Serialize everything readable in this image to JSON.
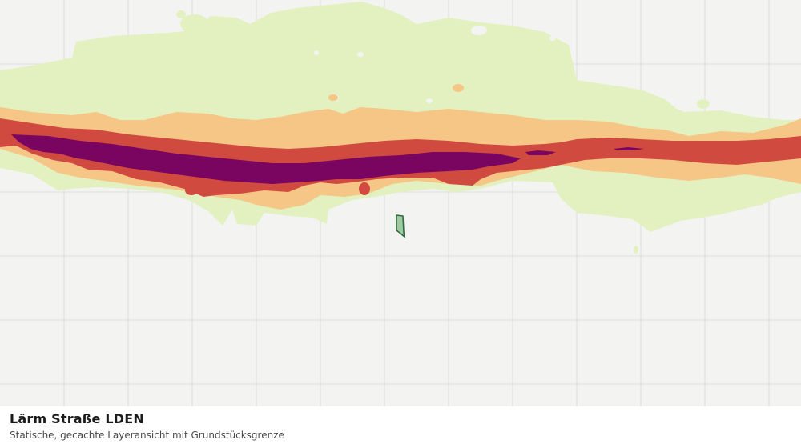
{
  "map": {
    "layer": "Lärm Straße LDEN",
    "noise_band_colors": {
      "lowest": "#e3f1c1",
      "low": "#f5c686",
      "medium": "#d04a40",
      "high": "#7a0560"
    },
    "parcel_boundary_color": "#2f6b3c",
    "parcel_fill_color": "#9ec9a2",
    "grid_color": "#dcdedb",
    "background_color": "#f3f4f2"
  },
  "caption": {
    "title": "Lärm Straße LDEN",
    "subtitle": "Statische, gecachte Layeransicht mit Grundstücksgrenze"
  }
}
